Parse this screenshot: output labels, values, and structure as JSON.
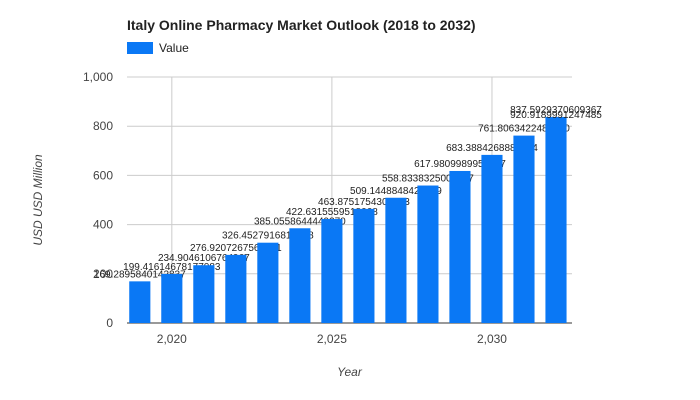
{
  "chart_data": {
    "type": "bar",
    "title": "Italy Online Pharmacy Market Outlook (2018 to 2032)",
    "xlabel": "Year",
    "ylabel": "USD USD Million",
    "x": [
      2019,
      2020,
      2021,
      2022,
      2023,
      2024,
      2025,
      2026,
      2027,
      2028,
      2029,
      2030,
      2031,
      2032
    ],
    "series": [
      {
        "name": "Value",
        "color": "#0a78f5",
        "values": [
          169.2895840142837,
          199.41614678177083,
          234.9046106764967,
          276.9207267563481,
          326.4527916817828,
          385.055864444937,
          422.6315559518068,
          463.8751754307433,
          509.1448848422729,
          558.8338325009007,
          617.9809989958477,
          683.3884268883434,
          761.806342248228,
          837.5929370609367
        ]
      }
    ],
    "value_labels": [
      "169.2895840142837",
      "199.41614678177083",
      "234.9046106764967",
      "276.9207267563481",
      "326.4527916817828",
      "385.0558644449370",
      "422.6315559518068",
      "463.8751754307433",
      "509.1448848422729",
      "558.8338325009007",
      "617.9809989958477",
      "683.3884268883434",
      "761.8063422482280",
      "837.5929370609367"
    ],
    "extra_label": "920.9189991247485",
    "ylim": [
      0,
      1000
    ],
    "yticks": [
      0,
      200,
      400,
      600,
      800,
      1000
    ],
    "ytick_labels": [
      "0",
      "200",
      "400",
      "600",
      "800",
      "1,000"
    ],
    "xlim": [
      2018.6,
      2032.5
    ],
    "xticks": [
      2020,
      2025,
      2030
    ],
    "xtick_labels": [
      "2,020",
      "2,025",
      "2,030"
    ],
    "grid": true,
    "legend": "top-left"
  }
}
